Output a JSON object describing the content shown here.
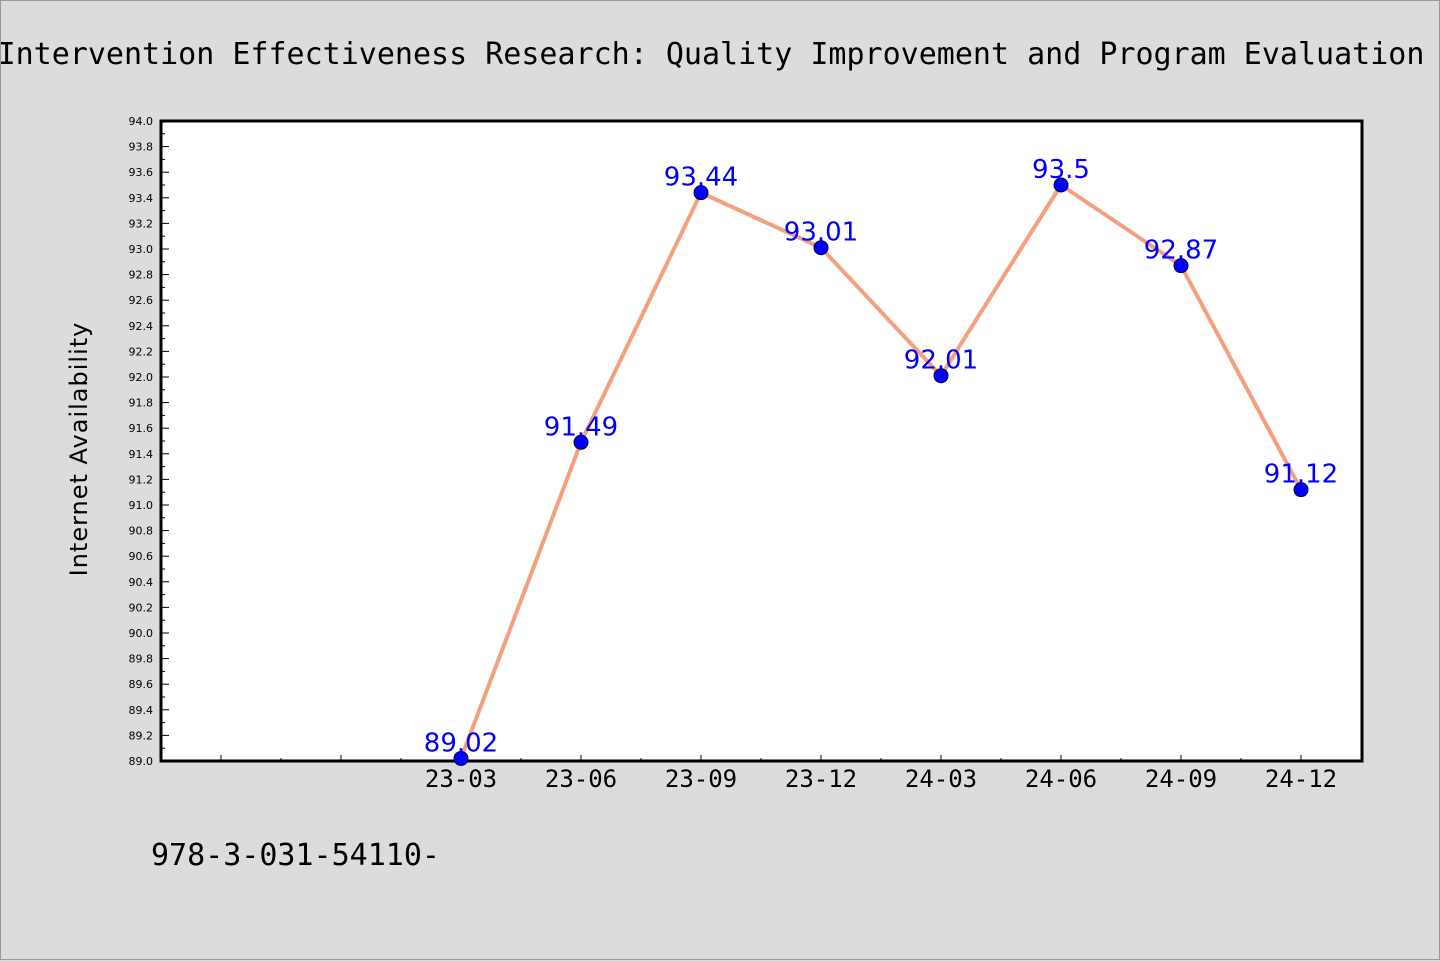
{
  "chart_data": {
    "type": "line",
    "title": "Intervention Effectiveness Research: Quality Improvement and Program Evaluation",
    "ylabel": "Internet Availability",
    "xlabel": "",
    "x_ticks": [
      "",
      "",
      "23-03",
      "23-06",
      "23-09",
      "23-12",
      "24-03",
      "24-06",
      "24-09",
      "24-12"
    ],
    "categories": [
      "23-03",
      "23-06",
      "23-09",
      "23-12",
      "24-03",
      "24-06",
      "24-09",
      "24-12"
    ],
    "series": [
      {
        "values": [
          89.02,
          91.49,
          93.44,
          93.01,
          92.01,
          93.5,
          92.87,
          91.12
        ],
        "data_labels": [
          "89.02",
          "91.49",
          "93.44",
          "93.01",
          "92.01",
          "93.5",
          "92.87",
          "91.12"
        ]
      }
    ],
    "ylim": [
      89.0,
      94.0
    ],
    "y_ticks": [
      "89.0",
      "89.2",
      "89.4",
      "89.6",
      "89.8",
      "90.0",
      "90.2",
      "90.4",
      "90.6",
      "90.8",
      "91.0",
      "91.2",
      "91.4",
      "91.6",
      "91.8",
      "92.0",
      "92.2",
      "92.4",
      "92.6",
      "92.8",
      "93.0",
      "93.2",
      "93.4",
      "93.6",
      "93.8",
      "94.0"
    ],
    "y_tick_values": [
      89.0,
      89.2,
      89.4,
      89.6,
      89.8,
      90.0,
      90.2,
      90.4,
      90.6,
      90.8,
      91.0,
      91.2,
      91.4,
      91.6,
      91.8,
      92.0,
      92.2,
      92.4,
      92.6,
      92.8,
      93.0,
      93.2,
      93.4,
      93.6,
      93.8,
      94.0
    ],
    "grid": false,
    "legend": "none",
    "colors": {
      "line": "#f4a07f",
      "marker": "#0000ff",
      "label": "#0000ff",
      "background": "#dcdcdc",
      "plot_area": "#ffffff"
    }
  },
  "footnote": "978-3-031-54110-"
}
